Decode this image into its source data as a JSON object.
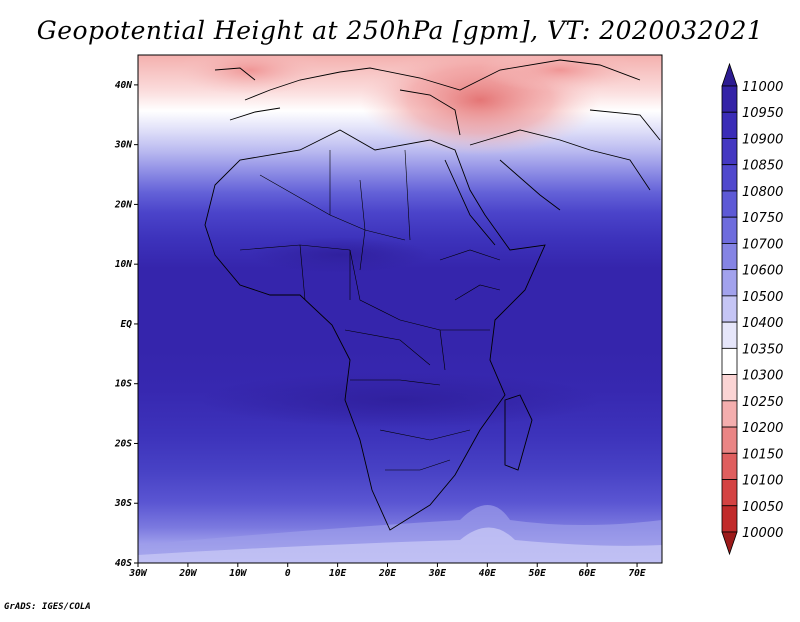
{
  "title": "Geopotential Height at 250hPa [gpm], VT: 2020032021",
  "credit": "GrADS: IGES/COLA",
  "map": {
    "lat_labels": [
      "40N",
      "30N",
      "20N",
      "10N",
      "EQ",
      "10S",
      "20S",
      "30S",
      "40S"
    ],
    "lat_values": [
      40,
      30,
      20,
      10,
      0,
      -10,
      -20,
      -30,
      -40
    ],
    "lon_labels": [
      "30W",
      "20W",
      "10W",
      "0",
      "10E",
      "20E",
      "30E",
      "40E",
      "50E",
      "60E",
      "70E"
    ],
    "lon_values": [
      -30,
      -20,
      -10,
      0,
      10,
      20,
      30,
      40,
      50,
      60,
      70
    ],
    "extent": {
      "lon_min": -30,
      "lon_max": 75,
      "lat_min": -40,
      "lat_max": 45
    }
  },
  "colorbar": {
    "labels": [
      "11000",
      "10950",
      "10900",
      "10850",
      "10800",
      "10750",
      "10700",
      "10600",
      "10500",
      "10400",
      "10350",
      "10300",
      "10250",
      "10200",
      "10150",
      "10100",
      "10050",
      "10000"
    ],
    "colors": [
      "#2d1c92",
      "#3423a7",
      "#3a2cb7",
      "#4438c2",
      "#5048cd",
      "#5d59d6",
      "#6e6cdd",
      "#8584e4",
      "#a2a2ed",
      "#c5c5f5",
      "#e6e6fa",
      "#ffffff",
      "#fbd4d4",
      "#f4aeae",
      "#ea8585",
      "#df5e5e",
      "#d44343",
      "#c12b2b",
      "#9c1a1a"
    ]
  }
}
